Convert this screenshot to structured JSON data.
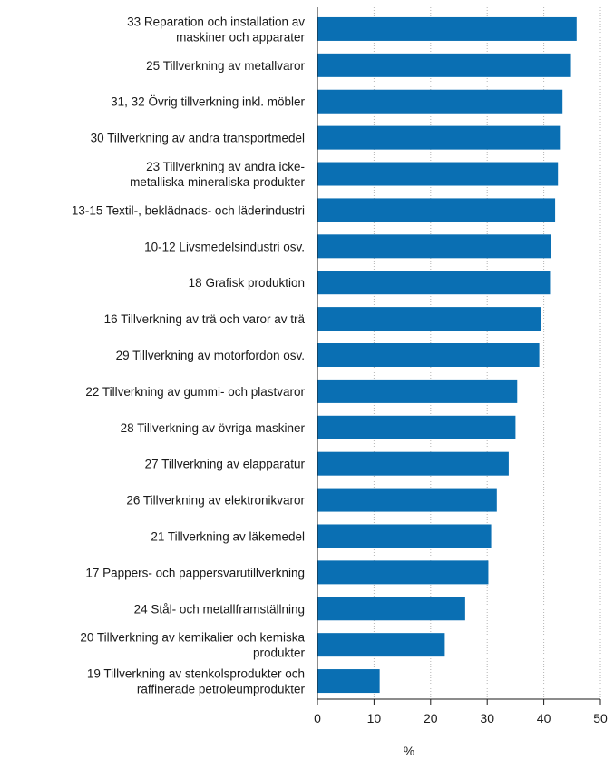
{
  "chart_data": {
    "type": "bar",
    "orientation": "horizontal",
    "categories": [
      [
        "33 Reparation och installation av",
        "maskiner och apparater"
      ],
      [
        "25 Tillverkning av metallvaror"
      ],
      [
        "31, 32 Övrig tillverkning inkl. möbler"
      ],
      [
        "30 Tillverkning av andra transportmedel"
      ],
      [
        "23 Tillverkning av andra icke-",
        "metalliska mineraliska produkter"
      ],
      [
        "13-15 Textil-, beklädnads- och läderindustri"
      ],
      [
        "10-12 Livsmedelsindustri osv."
      ],
      [
        "18 Grafisk produktion"
      ],
      [
        "16 Tillverkning av trä och varor av trä"
      ],
      [
        "29 Tillverkning av motorfordon osv."
      ],
      [
        "22 Tillverkning av gummi- och plastvaror"
      ],
      [
        "28 Tillverkning av övriga maskiner"
      ],
      [
        "27 Tillverkning av elapparatur"
      ],
      [
        "26 Tillverkning av elektronikvaror"
      ],
      [
        "21 Tillverkning av läkemedel"
      ],
      [
        "17 Pappers- och pappersvarutillverkning"
      ],
      [
        "24 Stål- och metallframställning"
      ],
      [
        "20 Tillverkning av kemikalier och kemiska",
        "produkter"
      ],
      [
        "19 Tillverkning av stenkolsprodukter och",
        "raffinerade petroleumprodukter"
      ]
    ],
    "values": [
      45.8,
      44.8,
      43.3,
      43.0,
      42.5,
      42.0,
      41.2,
      41.1,
      39.5,
      39.2,
      35.3,
      35.0,
      33.8,
      31.7,
      30.7,
      30.2,
      26.1,
      22.5,
      11.0
    ],
    "xlabel": "%",
    "xlim": [
      0,
      50
    ],
    "xticks": [
      "0",
      "10",
      "20",
      "30",
      "40",
      "50"
    ],
    "grid": "vertical dotted",
    "bar_color": "#0a6fb3",
    "grid_color": "#b5b5b5"
  }
}
